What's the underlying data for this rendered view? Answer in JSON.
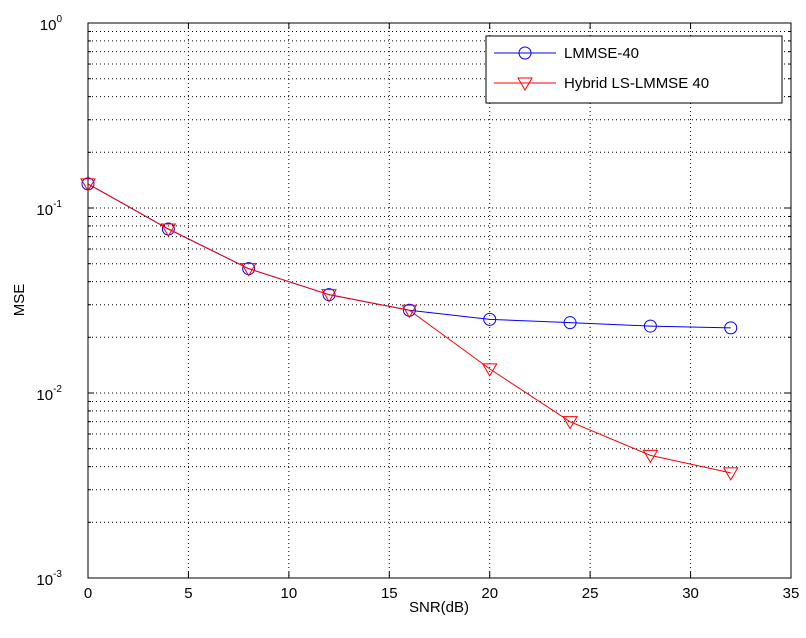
{
  "chart_data": {
    "type": "line",
    "title": "",
    "xlabel": "SNR(dB)",
    "ylabel": "MSE",
    "xlim": [
      0,
      35
    ],
    "ylim": [
      0.001,
      1
    ],
    "yscale": "log",
    "xticks": [
      0,
      5,
      10,
      15,
      20,
      25,
      30,
      35
    ],
    "xtick_labels": [
      "0",
      "5",
      "10",
      "15",
      "20",
      "25",
      "30",
      "35"
    ],
    "yticks": [
      {
        "base": "10",
        "exp": "-3"
      },
      {
        "base": "10",
        "exp": "-2"
      },
      {
        "base": "10",
        "exp": "-1"
      },
      {
        "base": "10",
        "exp": "0"
      }
    ],
    "grid": true,
    "legend_position": "top-right",
    "x": [
      0,
      4,
      8,
      12,
      16,
      20,
      24,
      28,
      32
    ],
    "series": [
      {
        "name": "LMMSE-40",
        "color": "#0000ff",
        "marker": "circle",
        "values": [
          0.135,
          0.077,
          0.047,
          0.034,
          0.028,
          0.025,
          0.024,
          0.023,
          0.0225
        ]
      },
      {
        "name": "Hybrid LS-LMMSE 40",
        "color": "#ff0000",
        "marker": "triangle-down",
        "values": [
          0.135,
          0.077,
          0.047,
          0.034,
          0.028,
          0.0135,
          0.007,
          0.0046,
          0.0037
        ]
      }
    ]
  }
}
